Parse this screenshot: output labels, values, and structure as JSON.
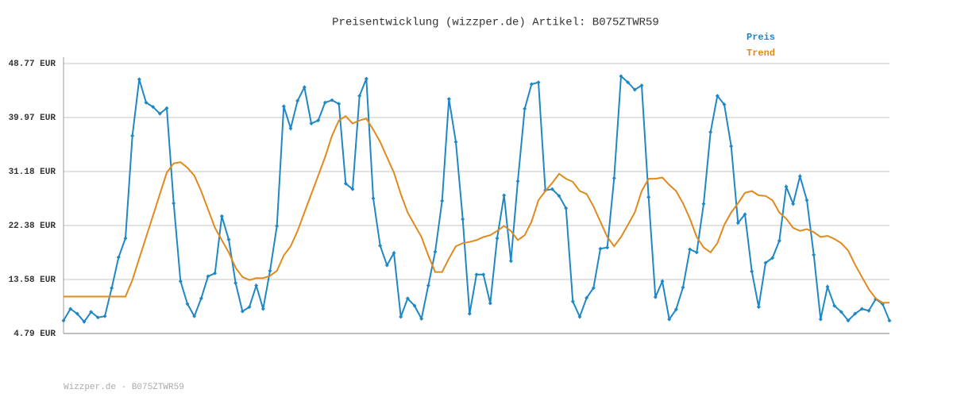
{
  "chart_data": {
    "type": "line",
    "title": "Preisentwicklung (wizzper.de) Artikel: B075ZTWR59",
    "footer": "Wizzper.de - B075ZTWR59",
    "ylim": [
      4.79,
      48.77
    ],
    "yticks": [
      {
        "value": 4.79,
        "label": "4.79 EUR"
      },
      {
        "value": 13.58,
        "label": "13.58 EUR"
      },
      {
        "value": 22.38,
        "label": "22.38 EUR"
      },
      {
        "value": 31.18,
        "label": "31.18 EUR"
      },
      {
        "value": 39.97,
        "label": "39.97 EUR"
      },
      {
        "value": 48.77,
        "label": "48.77 EUR"
      }
    ],
    "grid": true,
    "legend": "top-right",
    "series": [
      {
        "name": "Preis",
        "color": "#1f88c4",
        "markers": true,
        "values": [
          6.9,
          8.8,
          8.0,
          6.7,
          8.3,
          7.4,
          7.6,
          12.2,
          17.2,
          20.3,
          37.0,
          46.2,
          42.4,
          41.7,
          40.6,
          41.5,
          26.0,
          13.3,
          9.6,
          7.6,
          10.5,
          14.1,
          14.6,
          23.9,
          20.1,
          13.0,
          8.4,
          9.1,
          12.6,
          8.8,
          15.0,
          22.3,
          41.8,
          38.2,
          42.7,
          44.9,
          39.0,
          39.5,
          42.4,
          42.8,
          42.2,
          29.2,
          28.3,
          43.5,
          46.3,
          26.8,
          19.1,
          15.9,
          17.9,
          7.5,
          10.5,
          9.3,
          7.2,
          12.6,
          18.1,
          26.4,
          43.0,
          36.0,
          23.4,
          8.0,
          14.4,
          14.4,
          9.7,
          20.3,
          27.3,
          16.6,
          29.6,
          41.4,
          45.4,
          45.7,
          28.1,
          28.3,
          27.2,
          25.2,
          10.0,
          7.5,
          10.6,
          12.2,
          18.6,
          18.8,
          30.1,
          46.7,
          45.7,
          44.5,
          45.2,
          27.0,
          10.7,
          13.3,
          7.1,
          8.7,
          12.3,
          18.5,
          18.0,
          25.9,
          37.6,
          43.5,
          42.1,
          35.3,
          22.8,
          24.2,
          14.9,
          9.1,
          16.3,
          17.1,
          19.9,
          28.7,
          25.9,
          30.4,
          26.5,
          17.6,
          7.1,
          12.4,
          9.3,
          8.3,
          6.9,
          8.0,
          8.8,
          8.5,
          10.4,
          9.6,
          6.9
        ]
      },
      {
        "name": "Trend",
        "color": "#e08a1e",
        "markers": false,
        "values": [
          10.8,
          10.8,
          10.8,
          10.8,
          10.8,
          10.8,
          10.8,
          10.8,
          10.8,
          10.8,
          13.5,
          17,
          20.5,
          24,
          27.5,
          31,
          32.5,
          32.7,
          31.8,
          30.5,
          28,
          25,
          22,
          20,
          18,
          15.5,
          14,
          13.5,
          13.8,
          13.8,
          14.2,
          15,
          17.5,
          19,
          21.5,
          24.5,
          27.5,
          30.5,
          33.5,
          37,
          39.5,
          40.2,
          39,
          39.5,
          39.8,
          38,
          36,
          33.5,
          31,
          27.5,
          24.5,
          22.5,
          20.5,
          17.5,
          14.8,
          14.8,
          17,
          19,
          19.5,
          19.7,
          20,
          20.5,
          20.8,
          21.5,
          22.3,
          21.5,
          20,
          20.8,
          23,
          26.5,
          28,
          29.3,
          30.8,
          30,
          29.5,
          28,
          27.5,
          25.5,
          23,
          20.5,
          19,
          20.5,
          22.5,
          24.5,
          28,
          30,
          30,
          30.2,
          29,
          28,
          26,
          23.5,
          20.5,
          18.8,
          18,
          19.5,
          22.5,
          24.5,
          26,
          27.7,
          28,
          27.3,
          27.2,
          26.5,
          24.5,
          23.5,
          22,
          21.5,
          21.8,
          21.3,
          20.5,
          20.7,
          20.2,
          19.5,
          18.3,
          16,
          14,
          12,
          10.5,
          9.8,
          9.8
        ]
      }
    ]
  }
}
